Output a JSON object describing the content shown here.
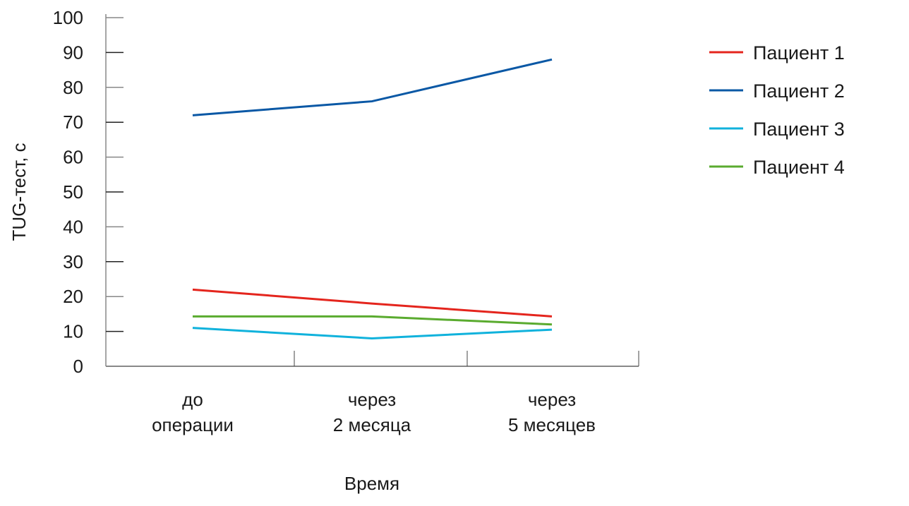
{
  "chart_data": {
    "type": "line",
    "title": "",
    "xlabel": "Время",
    "ylabel": "TUG-тест, с",
    "ylim": [
      0,
      100
    ],
    "yticks": [
      0,
      10,
      20,
      30,
      40,
      50,
      60,
      70,
      80,
      90,
      100
    ],
    "categories": [
      [
        "до",
        "операции"
      ],
      [
        "через",
        "2 месяца"
      ],
      [
        "через",
        "5 месяцев"
      ]
    ],
    "legend_position": "right",
    "grid": false,
    "series": [
      {
        "name": "Пациент 1",
        "color": "#e4251d",
        "values": [
          22,
          18,
          14.3
        ]
      },
      {
        "name": "Пациент 2",
        "color": "#0a58a5",
        "values": [
          72,
          76,
          88
        ]
      },
      {
        "name": "Пациент 3",
        "color": "#10b2dc",
        "values": [
          11,
          8,
          10.5
        ]
      },
      {
        "name": "Пациент 4",
        "color": "#5aab2f",
        "values": [
          14.3,
          14.3,
          12
        ]
      }
    ]
  }
}
